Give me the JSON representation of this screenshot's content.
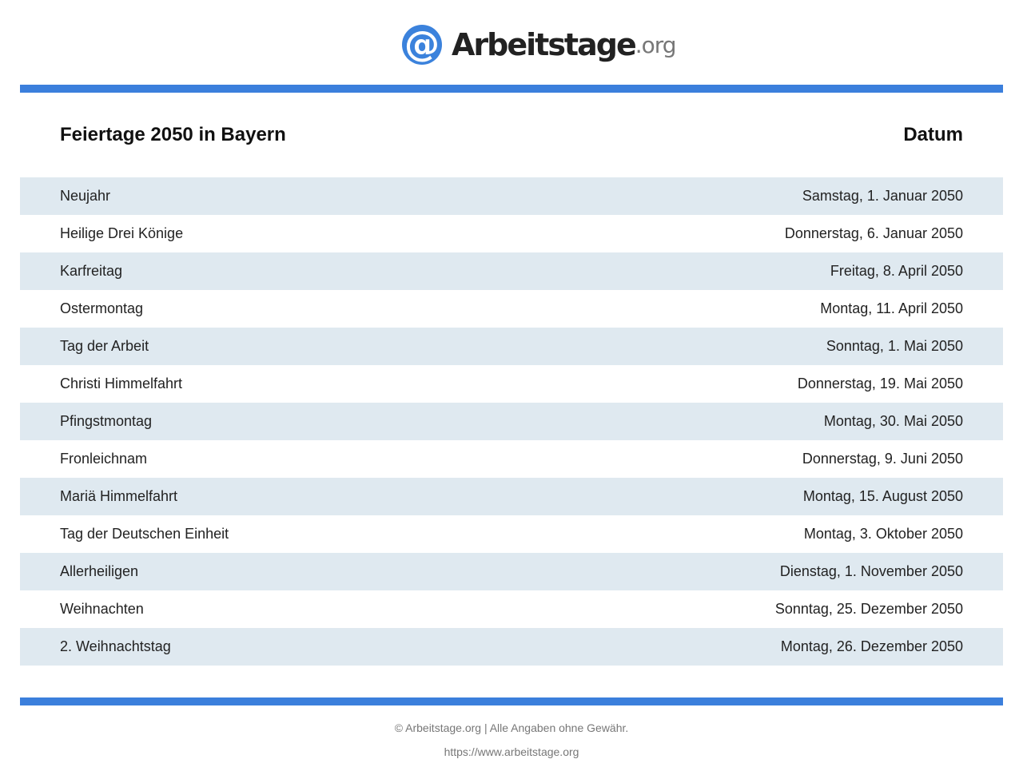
{
  "logo": {
    "name": "Arbeitstage",
    "tld": ".org",
    "symbol": "@"
  },
  "colors": {
    "accent": "#3b7fdc",
    "row_alt": "#dfe9f0"
  },
  "header": {
    "title": "Feiertage 2050 in Bayern",
    "date_col": "Datum"
  },
  "rows": [
    {
      "name": "Neujahr",
      "date": "Samstag, 1. Januar 2050"
    },
    {
      "name": "Heilige Drei Könige",
      "date": "Donnerstag, 6. Januar 2050"
    },
    {
      "name": "Karfreitag",
      "date": "Freitag, 8. April 2050"
    },
    {
      "name": "Ostermontag",
      "date": "Montag, 11. April 2050"
    },
    {
      "name": "Tag der Arbeit",
      "date": "Sonntag, 1. Mai 2050"
    },
    {
      "name": "Christi Himmelfahrt",
      "date": "Donnerstag, 19. Mai 2050"
    },
    {
      "name": "Pfingstmontag",
      "date": "Montag, 30. Mai 2050"
    },
    {
      "name": "Fronleichnam",
      "date": "Donnerstag, 9. Juni 2050"
    },
    {
      "name": "Mariä Himmelfahrt",
      "date": "Montag, 15. August 2050"
    },
    {
      "name": "Tag der Deutschen Einheit",
      "date": "Montag, 3. Oktober 2050"
    },
    {
      "name": "Allerheiligen",
      "date": "Dienstag, 1. November 2050"
    },
    {
      "name": "Weihnachten",
      "date": "Sonntag, 25. Dezember 2050"
    },
    {
      "name": "2. Weihnachtstag",
      "date": "Montag, 26. Dezember 2050"
    }
  ],
  "footer": {
    "copyright": "© Arbeitstage.org | Alle Angaben ohne Gewähr.",
    "url": "https://www.arbeitstage.org"
  }
}
